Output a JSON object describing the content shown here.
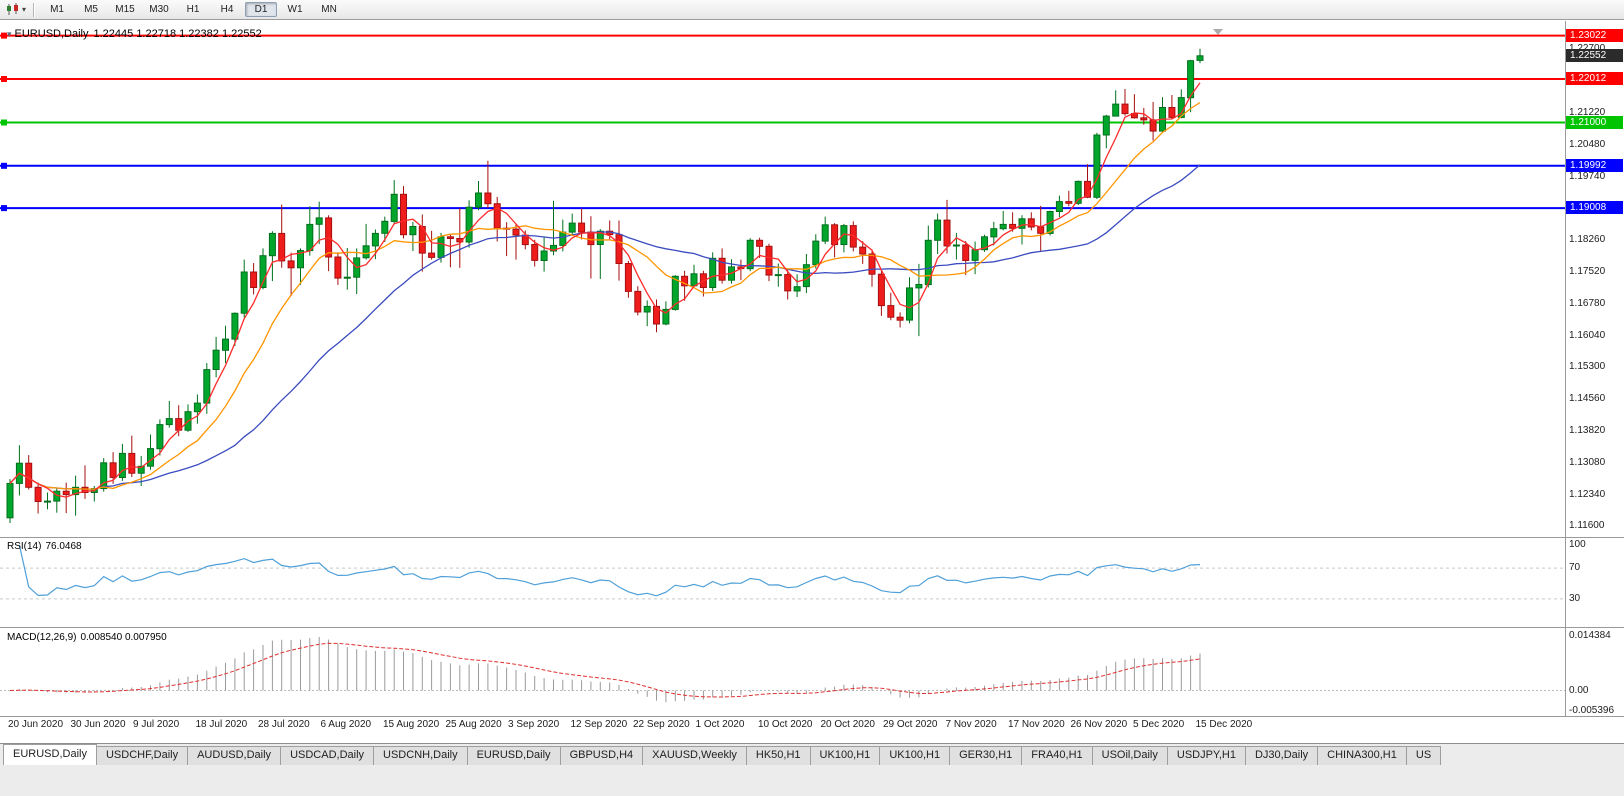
{
  "toolbar": {
    "timeframes": [
      "M1",
      "M5",
      "M15",
      "M30",
      "H1",
      "H4",
      "D1",
      "W1",
      "MN"
    ],
    "active_timeframe": "D1"
  },
  "chart": {
    "title_symbol": "EURUSD,Daily",
    "title_ohlc": "1.22445 1.22718 1.22382 1.22552",
    "colors": {
      "up": "#00A62C",
      "up_border": "#00701C",
      "down": "#EF1C1C",
      "down_border": "#A50F0F"
    },
    "price_axis": {
      "max": 1.232,
      "min": 1.114,
      "labels": [
        "1.22700",
        "1.21960",
        "1.21220",
        "1.20480",
        "1.19740",
        "1.19000",
        "1.18260",
        "1.17520",
        "1.16780",
        "1.16040",
        "1.15300",
        "1.14560",
        "1.13820",
        "1.13080",
        "1.12340",
        "1.11600"
      ]
    },
    "hlines": [
      {
        "price": 1.23022,
        "label": "1.23022",
        "color": "#FF0000"
      },
      {
        "price": 1.22012,
        "label": "1.22012",
        "color": "#FF0000"
      },
      {
        "price": 1.21,
        "label": "1.21000",
        "color": "#00C400"
      },
      {
        "price": 1.19992,
        "label": "1.19992",
        "color": "#0000FF"
      },
      {
        "price": 1.19008,
        "label": "1.19008",
        "color": "#0000FF"
      }
    ],
    "current_price": {
      "value": 1.22552,
      "label": "1.22552",
      "bg": "#2B2B2B"
    },
    "date_labels": [
      "20 Jun 2020",
      "30 Jun 2020",
      "9 Jul 2020",
      "18 Jul 2020",
      "28 Jul 2020",
      "6 Aug 2020",
      "15 Aug 2020",
      "25 Aug 2020",
      "3 Sep 2020",
      "12 Sep 2020",
      "22 Sep 2020",
      "1 Oct 2020",
      "10 Oct 2020",
      "20 Oct 2020",
      "29 Oct 2020",
      "7 Nov 2020",
      "17 Nov 2020",
      "26 Nov 2020",
      "5 Dec 2020",
      "15 Dec 2020"
    ]
  },
  "rsi": {
    "label": "RSI(14)",
    "value": "76.0468",
    "period": 14,
    "color": "#4FA0D8",
    "levels": [
      "100",
      "70",
      "30"
    ]
  },
  "macd": {
    "label": "MACD(12,26,9)",
    "values": "0.008540 0.007950",
    "axis": [
      "0.014384",
      "0.00",
      "-0.005396"
    ],
    "max": 0.014384,
    "min": -0.005396
  },
  "tabs_active_index": 0,
  "tabs": [
    "EURUSD,Daily",
    "USDCHF,Daily",
    "AUDUSD,Daily",
    "USDCAD,Daily",
    "USDCNH,Daily",
    "EURUSD,Daily",
    "GBPUSD,H4",
    "XAUUSD,Weekly",
    "HK50,H1",
    "UK100,H1",
    "UK100,H1",
    "GER30,H1",
    "FRA40,H1",
    "USOil,Daily",
    "USDJPY,H1",
    "DJ30,Daily",
    "CHINA300,H1",
    "US"
  ],
  "chart_data": {
    "type": "candlestick",
    "symbol": "EURUSD",
    "timeframe": "Daily",
    "x_range": [
      "20 Jun 2020",
      "15 Dec 2020"
    ],
    "moving_averages": [
      {
        "period": 25,
        "color": "#3B4CC0"
      },
      {
        "period": 10,
        "color": "#FF9500"
      },
      {
        "period": 4,
        "color": "#FF2A2A"
      }
    ],
    "candles": [
      [
        1.118,
        1.127,
        1.1168,
        1.126
      ],
      [
        1.126,
        1.1349,
        1.1232,
        1.1307
      ],
      [
        1.1307,
        1.1326,
        1.1246,
        1.1251
      ],
      [
        1.1251,
        1.1262,
        1.119,
        1.1218
      ],
      [
        1.1218,
        1.1239,
        1.12,
        1.1219
      ],
      [
        1.1219,
        1.125,
        1.1192,
        1.1242
      ],
      [
        1.1242,
        1.1262,
        1.1191,
        1.1234
      ],
      [
        1.1234,
        1.1278,
        1.1185,
        1.1251
      ],
      [
        1.1251,
        1.1302,
        1.1224,
        1.1239
      ],
      [
        1.1239,
        1.1254,
        1.1218,
        1.1248
      ],
      [
        1.1248,
        1.1319,
        1.1241,
        1.1308
      ],
      [
        1.1308,
        1.1333,
        1.1259,
        1.1274
      ],
      [
        1.1274,
        1.1352,
        1.1266,
        1.133
      ],
      [
        1.133,
        1.1371,
        1.1275,
        1.1284
      ],
      [
        1.1284,
        1.1324,
        1.1254,
        1.13
      ],
      [
        1.13,
        1.1374,
        1.1292,
        1.1341
      ],
      [
        1.1341,
        1.1409,
        1.1325,
        1.1397
      ],
      [
        1.1397,
        1.1452,
        1.139,
        1.1411
      ],
      [
        1.1411,
        1.1442,
        1.137,
        1.1384
      ],
      [
        1.1384,
        1.1444,
        1.138,
        1.1427
      ],
      [
        1.1427,
        1.1467,
        1.1399,
        1.1447
      ],
      [
        1.1447,
        1.154,
        1.1422,
        1.1525
      ],
      [
        1.1525,
        1.1601,
        1.1507,
        1.157
      ],
      [
        1.157,
        1.1627,
        1.154,
        1.1596
      ],
      [
        1.1596,
        1.1658,
        1.158,
        1.1656
      ],
      [
        1.1656,
        1.1781,
        1.1646,
        1.1752
      ],
      [
        1.1752,
        1.1773,
        1.17,
        1.1716
      ],
      [
        1.1716,
        1.1807,
        1.1712,
        1.179
      ],
      [
        1.179,
        1.1847,
        1.1731,
        1.1842
      ],
      [
        1.1842,
        1.1909,
        1.1762,
        1.1778
      ],
      [
        1.1778,
        1.1797,
        1.1696,
        1.1762
      ],
      [
        1.1762,
        1.1807,
        1.1722,
        1.1802
      ],
      [
        1.1802,
        1.1905,
        1.179,
        1.1863
      ],
      [
        1.1863,
        1.1916,
        1.1817,
        1.1878
      ],
      [
        1.1878,
        1.1884,
        1.1754,
        1.1787
      ],
      [
        1.1787,
        1.1798,
        1.1722,
        1.1738
      ],
      [
        1.1738,
        1.1808,
        1.1711,
        1.174
      ],
      [
        1.174,
        1.1807,
        1.1701,
        1.1785
      ],
      [
        1.1785,
        1.1864,
        1.1781,
        1.1813
      ],
      [
        1.1813,
        1.1851,
        1.1782,
        1.1842
      ],
      [
        1.1842,
        1.1881,
        1.1822,
        1.187
      ],
      [
        1.187,
        1.1966,
        1.1863,
        1.1933
      ],
      [
        1.1933,
        1.1952,
        1.183,
        1.1839
      ],
      [
        1.1839,
        1.1869,
        1.1801,
        1.1858
      ],
      [
        1.1858,
        1.1886,
        1.1753,
        1.1796
      ],
      [
        1.1796,
        1.1848,
        1.1781,
        1.1786
      ],
      [
        1.1786,
        1.1843,
        1.1774,
        1.1834
      ],
      [
        1.1834,
        1.1841,
        1.1763,
        1.183
      ],
      [
        1.183,
        1.1901,
        1.1762,
        1.1822
      ],
      [
        1.1822,
        1.1919,
        1.1809,
        1.1903
      ],
      [
        1.1903,
        1.1964,
        1.1896,
        1.1936
      ],
      [
        1.1936,
        1.2011,
        1.1901,
        1.1911
      ],
      [
        1.1911,
        1.1927,
        1.1823,
        1.1854
      ],
      [
        1.1854,
        1.1868,
        1.1789,
        1.1852
      ],
      [
        1.1852,
        1.1865,
        1.1781,
        1.1838
      ],
      [
        1.1838,
        1.1849,
        1.1805,
        1.1816
      ],
      [
        1.1816,
        1.1827,
        1.1765,
        1.1779
      ],
      [
        1.1779,
        1.1834,
        1.1753,
        1.1801
      ],
      [
        1.1801,
        1.1918,
        1.1791,
        1.1814
      ],
      [
        1.1814,
        1.1874,
        1.18,
        1.1845
      ],
      [
        1.1845,
        1.1888,
        1.1839,
        1.1866
      ],
      [
        1.1866,
        1.19,
        1.1828,
        1.1845
      ],
      [
        1.1845,
        1.1882,
        1.1737,
        1.1816
      ],
      [
        1.1816,
        1.1852,
        1.1736,
        1.1847
      ],
      [
        1.1847,
        1.1872,
        1.1826,
        1.1839
      ],
      [
        1.1839,
        1.1872,
        1.1732,
        1.1772
      ],
      [
        1.1772,
        1.1778,
        1.1692,
        1.1707
      ],
      [
        1.1707,
        1.1719,
        1.1651,
        1.1659
      ],
      [
        1.1659,
        1.1686,
        1.1626,
        1.1672
      ],
      [
        1.1672,
        1.1688,
        1.1612,
        1.1631
      ],
      [
        1.1631,
        1.1684,
        1.1628,
        1.1665
      ],
      [
        1.1665,
        1.1745,
        1.1662,
        1.1742
      ],
      [
        1.1742,
        1.1755,
        1.1685,
        1.172
      ],
      [
        1.172,
        1.1769,
        1.1717,
        1.1748
      ],
      [
        1.1748,
        1.1755,
        1.1695,
        1.1716
      ],
      [
        1.1716,
        1.1798,
        1.1708,
        1.1784
      ],
      [
        1.1784,
        1.1807,
        1.1725,
        1.1733
      ],
      [
        1.1733,
        1.1782,
        1.1725,
        1.1764
      ],
      [
        1.1764,
        1.1781,
        1.1733,
        1.176
      ],
      [
        1.176,
        1.1831,
        1.1754,
        1.1826
      ],
      [
        1.1826,
        1.1832,
        1.1785,
        1.1812
      ],
      [
        1.1812,
        1.1818,
        1.1731,
        1.1745
      ],
      [
        1.1745,
        1.1772,
        1.1718,
        1.1746
      ],
      [
        1.1746,
        1.1758,
        1.1688,
        1.1708
      ],
      [
        1.1708,
        1.1747,
        1.1694,
        1.1718
      ],
      [
        1.1718,
        1.1794,
        1.1703,
        1.1769
      ],
      [
        1.1769,
        1.184,
        1.176,
        1.1824
      ],
      [
        1.1824,
        1.1881,
        1.1817,
        1.1862
      ],
      [
        1.1862,
        1.1866,
        1.1786,
        1.1816
      ],
      [
        1.1816,
        1.1864,
        1.1798,
        1.186
      ],
      [
        1.186,
        1.187,
        1.18,
        1.181
      ],
      [
        1.181,
        1.1824,
        1.1771,
        1.1794
      ],
      [
        1.1794,
        1.18,
        1.1718,
        1.1747
      ],
      [
        1.1747,
        1.1759,
        1.165,
        1.1674
      ],
      [
        1.1674,
        1.1704,
        1.164,
        1.1647
      ],
      [
        1.1647,
        1.1658,
        1.1623,
        1.164
      ],
      [
        1.164,
        1.174,
        1.1633,
        1.1715
      ],
      [
        1.1715,
        1.1771,
        1.1603,
        1.1723
      ],
      [
        1.1723,
        1.186,
        1.1716,
        1.1826
      ],
      [
        1.1826,
        1.1888,
        1.1794,
        1.1873
      ],
      [
        1.1873,
        1.192,
        1.1795,
        1.1813
      ],
      [
        1.1813,
        1.1843,
        1.1781,
        1.1815
      ],
      [
        1.1815,
        1.1824,
        1.1745,
        1.1779
      ],
      [
        1.1779,
        1.1823,
        1.1747,
        1.1804
      ],
      [
        1.1804,
        1.1839,
        1.1799,
        1.1834
      ],
      [
        1.1834,
        1.1869,
        1.1814,
        1.1853
      ],
      [
        1.1853,
        1.1894,
        1.1849,
        1.1863
      ],
      [
        1.1863,
        1.1891,
        1.1846,
        1.1854
      ],
      [
        1.1854,
        1.1884,
        1.1816,
        1.1876
      ],
      [
        1.1876,
        1.1891,
        1.1849,
        1.1857
      ],
      [
        1.1857,
        1.1906,
        1.18,
        1.1842
      ],
      [
        1.1842,
        1.1895,
        1.1837,
        1.1893
      ],
      [
        1.1893,
        1.193,
        1.188,
        1.1916
      ],
      [
        1.1916,
        1.1941,
        1.1905,
        1.1912
      ],
      [
        1.1912,
        1.1965,
        1.1908,
        1.1963
      ],
      [
        1.1963,
        1.2003,
        1.1924,
        1.1926
      ],
      [
        1.1926,
        1.2076,
        1.1922,
        1.2071
      ],
      [
        1.2071,
        1.2118,
        1.204,
        1.2115
      ],
      [
        1.2115,
        1.2175,
        1.2114,
        1.2143
      ],
      [
        1.2143,
        1.2178,
        1.2116,
        1.2121
      ],
      [
        1.2121,
        1.2166,
        1.2109,
        1.2111
      ],
      [
        1.2111,
        1.2134,
        1.2095,
        1.2106
      ],
      [
        1.2106,
        1.2148,
        1.2058,
        1.208
      ],
      [
        1.208,
        1.2159,
        1.2076,
        1.2135
      ],
      [
        1.2135,
        1.2164,
        1.2109,
        1.2112
      ],
      [
        1.2112,
        1.2177,
        1.211,
        1.2158
      ],
      [
        1.2158,
        1.2246,
        1.2124,
        1.2244
      ],
      [
        1.22445,
        1.22718,
        1.22382,
        1.22552
      ]
    ]
  }
}
